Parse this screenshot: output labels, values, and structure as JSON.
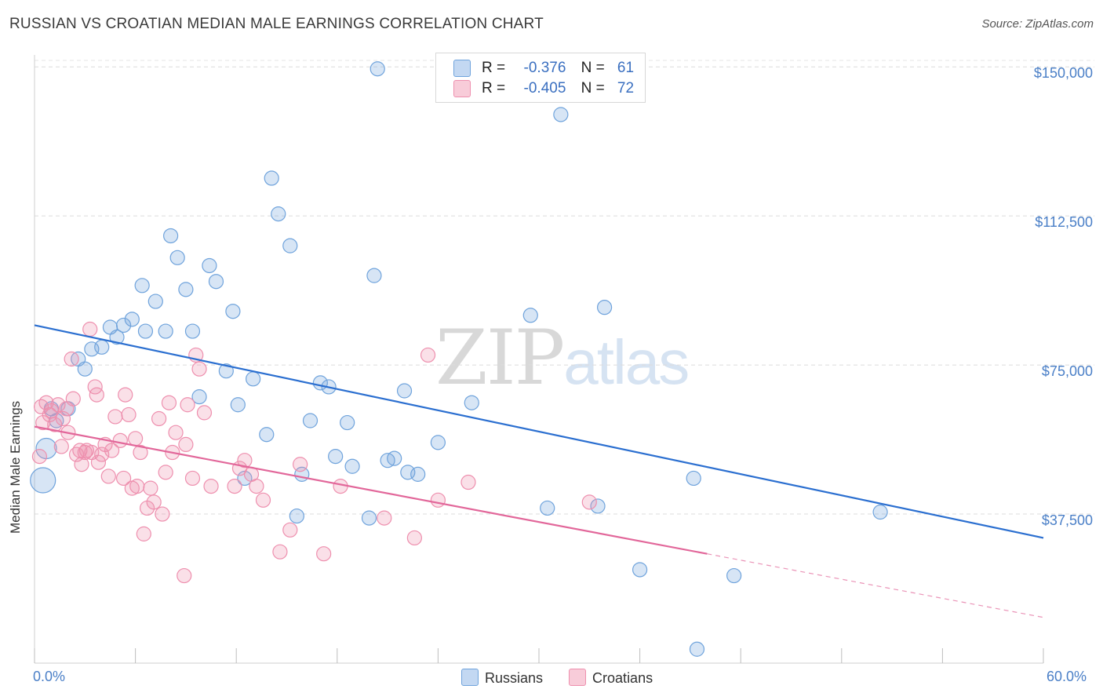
{
  "title": "RUSSIAN VS CROATIAN MEDIAN MALE EARNINGS CORRELATION CHART",
  "source": "Source: ZipAtlas.com",
  "watermark": {
    "zip": "ZIP",
    "atlas": "atlas"
  },
  "legend": {
    "russians": {
      "r_label": "R =",
      "r_value": "-0.376",
      "n_label": "N =",
      "n_value": "61"
    },
    "croatians": {
      "r_label": "R =",
      "r_value": "-0.405",
      "n_label": "N =",
      "n_value": "72"
    }
  },
  "colors": {
    "russians": "#6fa3dc",
    "croatians": "#ee8fae",
    "russians_line": "#2b6fd0",
    "croatians_line": "#e2679a"
  },
  "chart_data": {
    "type": "scatter",
    "title": "RUSSIAN VS CROATIAN MEDIAN MALE EARNINGS CORRELATION CHART",
    "xlabel": "",
    "ylabel": "Median Male Earnings",
    "xlim": [
      0,
      60
    ],
    "ylim": [
      0,
      153000
    ],
    "x_tick_labels": [
      "0.0%",
      "60.0%"
    ],
    "y_ticks": [
      37500,
      75000,
      112500,
      150000
    ],
    "y_tick_labels": [
      "$37,500",
      "$75,000",
      "$112,500",
      "$150,000"
    ],
    "grid": "horizontal dashed",
    "legend_position": "top-center",
    "series": [
      {
        "name": "Russians",
        "r": -0.376,
        "n": 61,
        "trend": {
          "x0": 0,
          "y0": 85000,
          "x1": 60,
          "y1": 31500
        },
        "points": [
          [
            0.5,
            46000
          ],
          [
            0.7,
            54000
          ],
          [
            1.0,
            64000
          ],
          [
            1.3,
            61000
          ],
          [
            2.0,
            64000
          ],
          [
            2.6,
            76500
          ],
          [
            3.0,
            74000
          ],
          [
            3.4,
            79000
          ],
          [
            4.0,
            79500
          ],
          [
            4.5,
            84500
          ],
          [
            4.9,
            82000
          ],
          [
            5.3,
            85000
          ],
          [
            5.8,
            86500
          ],
          [
            6.4,
            95000
          ],
          [
            6.6,
            83500
          ],
          [
            7.2,
            91000
          ],
          [
            7.8,
            83500
          ],
          [
            8.1,
            107500
          ],
          [
            8.5,
            102000
          ],
          [
            9.0,
            94000
          ],
          [
            9.4,
            83500
          ],
          [
            9.8,
            67000
          ],
          [
            10.4,
            100000
          ],
          [
            10.8,
            96000
          ],
          [
            11.4,
            73500
          ],
          [
            11.8,
            88500
          ],
          [
            12.1,
            65000
          ],
          [
            12.5,
            46500
          ],
          [
            13.0,
            71500
          ],
          [
            13.8,
            57500
          ],
          [
            14.1,
            122000
          ],
          [
            14.5,
            113000
          ],
          [
            15.2,
            105000
          ],
          [
            15.6,
            37000
          ],
          [
            15.9,
            47500
          ],
          [
            16.4,
            61000
          ],
          [
            17.0,
            70500
          ],
          [
            17.5,
            69500
          ],
          [
            17.9,
            52000
          ],
          [
            18.6,
            60500
          ],
          [
            18.9,
            49500
          ],
          [
            19.9,
            36500
          ],
          [
            20.2,
            97500
          ],
          [
            20.4,
            149500
          ],
          [
            21.0,
            51000
          ],
          [
            21.4,
            51500
          ],
          [
            22.0,
            68500
          ],
          [
            22.2,
            48000
          ],
          [
            22.8,
            47500
          ],
          [
            24.0,
            55500
          ],
          [
            26.0,
            65500
          ],
          [
            29.5,
            87500
          ],
          [
            30.5,
            39000
          ],
          [
            31.3,
            138000
          ],
          [
            33.5,
            39500
          ],
          [
            33.9,
            89500
          ],
          [
            36.0,
            23500
          ],
          [
            39.2,
            46500
          ],
          [
            41.6,
            22000
          ],
          [
            39.4,
            3500
          ],
          [
            50.3,
            38000
          ]
        ]
      },
      {
        "name": "Croatians",
        "r": -0.405,
        "n": 72,
        "trend": {
          "x0": 0,
          "y0": 59500,
          "x1": 40,
          "y1": 27500,
          "dashed_to": {
            "x": 60,
            "y": 11500
          }
        },
        "points": [
          [
            0.3,
            52000
          ],
          [
            0.4,
            64500
          ],
          [
            0.5,
            60500
          ],
          [
            0.7,
            65500
          ],
          [
            0.9,
            62500
          ],
          [
            1.0,
            63500
          ],
          [
            1.2,
            60000
          ],
          [
            1.4,
            65000
          ],
          [
            1.6,
            54500
          ],
          [
            1.7,
            61500
          ],
          [
            1.9,
            64000
          ],
          [
            2.0,
            58000
          ],
          [
            2.2,
            76500
          ],
          [
            2.3,
            66500
          ],
          [
            2.5,
            52500
          ],
          [
            2.7,
            53500
          ],
          [
            2.8,
            50000
          ],
          [
            3.0,
            53000
          ],
          [
            3.1,
            53500
          ],
          [
            3.3,
            84000
          ],
          [
            3.4,
            53000
          ],
          [
            3.6,
            69500
          ],
          [
            3.7,
            67500
          ],
          [
            3.8,
            50500
          ],
          [
            4.0,
            52500
          ],
          [
            4.2,
            55000
          ],
          [
            4.4,
            47000
          ],
          [
            4.6,
            53500
          ],
          [
            4.8,
            62000
          ],
          [
            5.1,
            56000
          ],
          [
            5.3,
            46500
          ],
          [
            5.4,
            67500
          ],
          [
            5.6,
            62500
          ],
          [
            5.8,
            44000
          ],
          [
            6.0,
            56500
          ],
          [
            6.1,
            44500
          ],
          [
            6.3,
            53000
          ],
          [
            6.5,
            32500
          ],
          [
            6.7,
            39000
          ],
          [
            6.9,
            44000
          ],
          [
            7.1,
            40500
          ],
          [
            7.4,
            61500
          ],
          [
            7.6,
            37500
          ],
          [
            7.8,
            48000
          ],
          [
            8.0,
            65500
          ],
          [
            8.2,
            53000
          ],
          [
            8.4,
            58000
          ],
          [
            8.9,
            22000
          ],
          [
            9.0,
            55000
          ],
          [
            9.1,
            65000
          ],
          [
            9.4,
            46500
          ],
          [
            9.6,
            77500
          ],
          [
            9.8,
            74000
          ],
          [
            10.1,
            63000
          ],
          [
            10.5,
            44500
          ],
          [
            11.9,
            44500
          ],
          [
            12.2,
            49000
          ],
          [
            12.5,
            51000
          ],
          [
            12.9,
            47500
          ],
          [
            13.2,
            44500
          ],
          [
            13.6,
            41000
          ],
          [
            14.6,
            28000
          ],
          [
            15.2,
            33500
          ],
          [
            15.8,
            50000
          ],
          [
            17.2,
            27500
          ],
          [
            18.2,
            44500
          ],
          [
            20.8,
            36500
          ],
          [
            22.6,
            31500
          ],
          [
            23.4,
            77500
          ],
          [
            24.0,
            41000
          ],
          [
            25.8,
            45500
          ],
          [
            33.0,
            40500
          ]
        ]
      }
    ]
  }
}
